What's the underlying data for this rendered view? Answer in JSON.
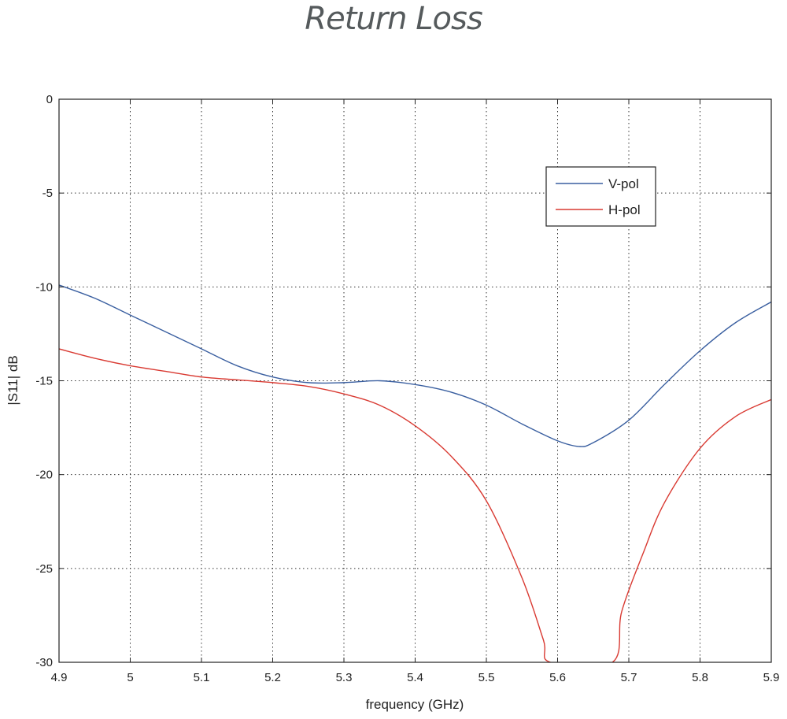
{
  "chart_data": {
    "type": "line",
    "title": "Return Loss",
    "xlabel": "frequency (GHz)",
    "ylabel": "|S11| dB",
    "xlim": [
      4.9,
      5.9
    ],
    "ylim": [
      -30,
      0
    ],
    "xticks": [
      "4.9",
      "5",
      "5.1",
      "5.2",
      "5.3",
      "5.4",
      "5.5",
      "5.6",
      "5.7",
      "5.8",
      "5.9"
    ],
    "yticks": [
      "0",
      "-5",
      "-10",
      "-15",
      "-20",
      "-25",
      "-30"
    ],
    "grid": true,
    "legend": "top-right",
    "series": [
      {
        "name": "V-pol",
        "color": "#3a5fa0",
        "x": [
          4.9,
          4.95,
          5.0,
          5.05,
          5.1,
          5.15,
          5.2,
          5.25,
          5.3,
          5.35,
          5.4,
          5.45,
          5.5,
          5.55,
          5.6,
          5.63,
          5.65,
          5.7,
          5.75,
          5.8,
          5.85,
          5.9
        ],
        "y": [
          -9.9,
          -10.6,
          -11.5,
          -12.4,
          -13.3,
          -14.2,
          -14.8,
          -15.1,
          -15.1,
          -15.0,
          -15.2,
          -15.6,
          -16.3,
          -17.3,
          -18.2,
          -18.5,
          -18.3,
          -17.1,
          -15.2,
          -13.4,
          -11.9,
          -10.8
        ]
      },
      {
        "name": "H-pol",
        "color": "#d93a32",
        "x": [
          4.9,
          4.95,
          5.0,
          5.05,
          5.1,
          5.15,
          5.2,
          5.25,
          5.3,
          5.35,
          5.4,
          5.45,
          5.5,
          5.55,
          5.58,
          5.59,
          5.677,
          5.69,
          5.72,
          5.75,
          5.8,
          5.85,
          5.9
        ],
        "y": [
          -13.3,
          -13.8,
          -14.2,
          -14.5,
          -14.8,
          -14.95,
          -15.1,
          -15.3,
          -15.7,
          -16.3,
          -17.4,
          -19.0,
          -21.4,
          -25.5,
          -28.8,
          -30.0,
          -30.0,
          -27.3,
          -24.2,
          -21.5,
          -18.6,
          -16.9,
          -16.0
        ]
      }
    ]
  }
}
